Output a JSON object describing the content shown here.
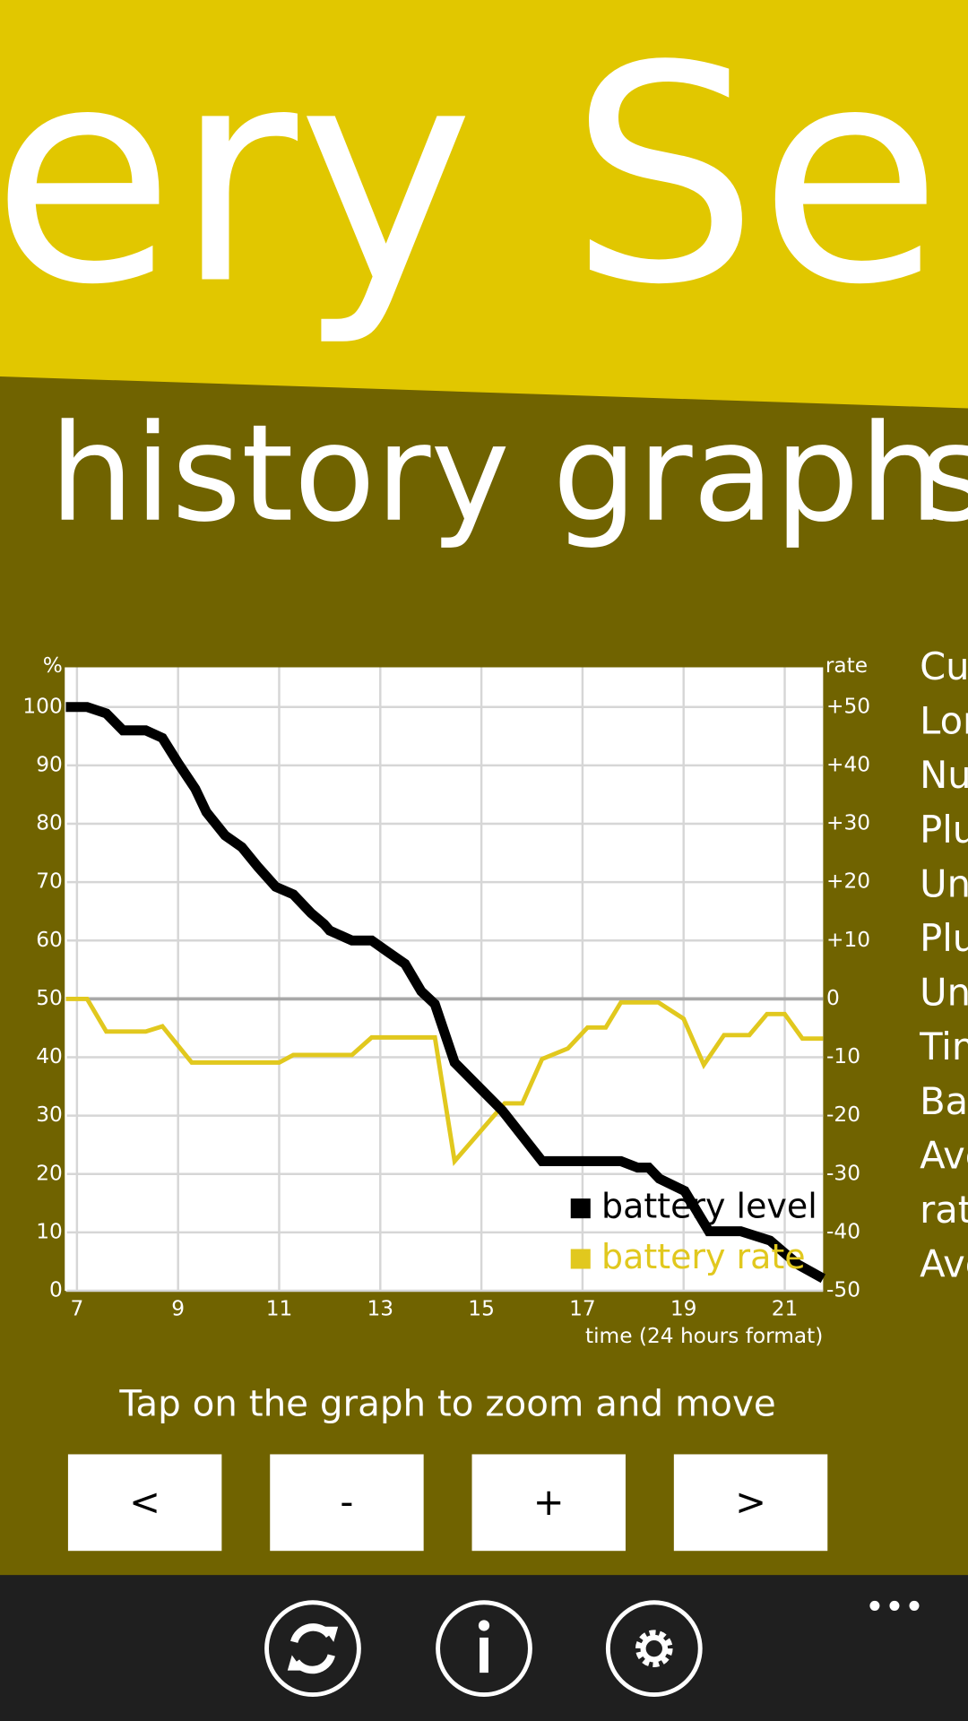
{
  "header": {
    "title": "ery Sen"
  },
  "pivot": {
    "current": "history graph",
    "next": "s"
  },
  "chart_data": {
    "type": "line",
    "xlabel": "time (24 hours format)",
    "ylabel": "%",
    "y2label": "rate",
    "xlim": [
      6.78,
      21.76
    ],
    "xticks": [
      7,
      9,
      11,
      13,
      15,
      17,
      19,
      21
    ],
    "ylim": [
      0,
      106.8
    ],
    "yticks": [
      0,
      10,
      20,
      30,
      40,
      50,
      60,
      70,
      80,
      90,
      100
    ],
    "y2lim": [
      -50,
      56.8
    ],
    "y2ticks": [
      -50,
      -40,
      -30,
      -20,
      -10,
      0,
      {
        "value": 10,
        "label": "+10"
      },
      {
        "value": 20,
        "label": "+20"
      },
      {
        "value": 30,
        "label": "+30"
      },
      {
        "value": 40,
        "label": "+40"
      },
      {
        "value": 50,
        "label": "+50"
      }
    ],
    "grid": true,
    "legend": "lower right",
    "series": [
      {
        "name": "battery level",
        "color": "#000000",
        "x": [
          6.78,
          7.2,
          7.58,
          7.91,
          8.36,
          8.69,
          9.0,
          9.34,
          9.56,
          9.93,
          10.26,
          10.58,
          10.93,
          11.28,
          11.63,
          11.89,
          12.0,
          12.44,
          12.83,
          13.14,
          13.49,
          13.81,
          14.08,
          14.47,
          14.94,
          15.42,
          15.81,
          16.2,
          17.76,
          18.09,
          18.31,
          18.52,
          19.02,
          19.5,
          20.13,
          20.71,
          21.26,
          21.76
        ],
        "values": [
          100,
          100,
          98.9,
          96,
          96,
          94.7,
          90.4,
          86,
          82,
          78,
          76,
          72.6,
          69.2,
          67.9,
          64.7,
          62.8,
          61.7,
          60,
          60,
          58.1,
          56,
          51.3,
          49.1,
          39.1,
          35,
          30.8,
          26.5,
          22.2,
          22.2,
          21.1,
          21.1,
          19.2,
          17.1,
          10.2,
          10.2,
          8.6,
          4.5,
          2.1
        ]
      },
      {
        "name": "battery rate",
        "color": "#e1c81e",
        "axis": "y2",
        "x": [
          6.78,
          7.2,
          7.58,
          8.36,
          8.69,
          9.27,
          11.0,
          11.28,
          12.44,
          12.83,
          14.08,
          14.47,
          15.46,
          15.81,
          16.2,
          16.71,
          17.1,
          17.46,
          17.76,
          18.5,
          19.0,
          19.4,
          19.8,
          20.3,
          20.65,
          21.0,
          21.35,
          21.76
        ],
        "values": [
          0,
          0,
          -5.6,
          -5.6,
          -4.7,
          -10.9,
          -10.9,
          -9.6,
          -9.6,
          -6.6,
          -6.6,
          -27.8,
          -17.9,
          -17.9,
          -10.3,
          -8.5,
          -4.9,
          -4.9,
          -0.6,
          -0.6,
          -3.4,
          -11.3,
          -6.2,
          -6.2,
          -2.6,
          -2.6,
          -6.8,
          -6.8
        ]
      }
    ]
  },
  "side_labels": [
    "Cu",
    "Lor",
    "Nu",
    "Plu",
    "Un",
    "Plu",
    "Un",
    "Tim",
    "Bat",
    "Ave",
    "rate",
    "Ave"
  ],
  "hint": "Tap on the graph to zoom and move",
  "buttons": [
    "<",
    "-",
    "+",
    ">"
  ]
}
